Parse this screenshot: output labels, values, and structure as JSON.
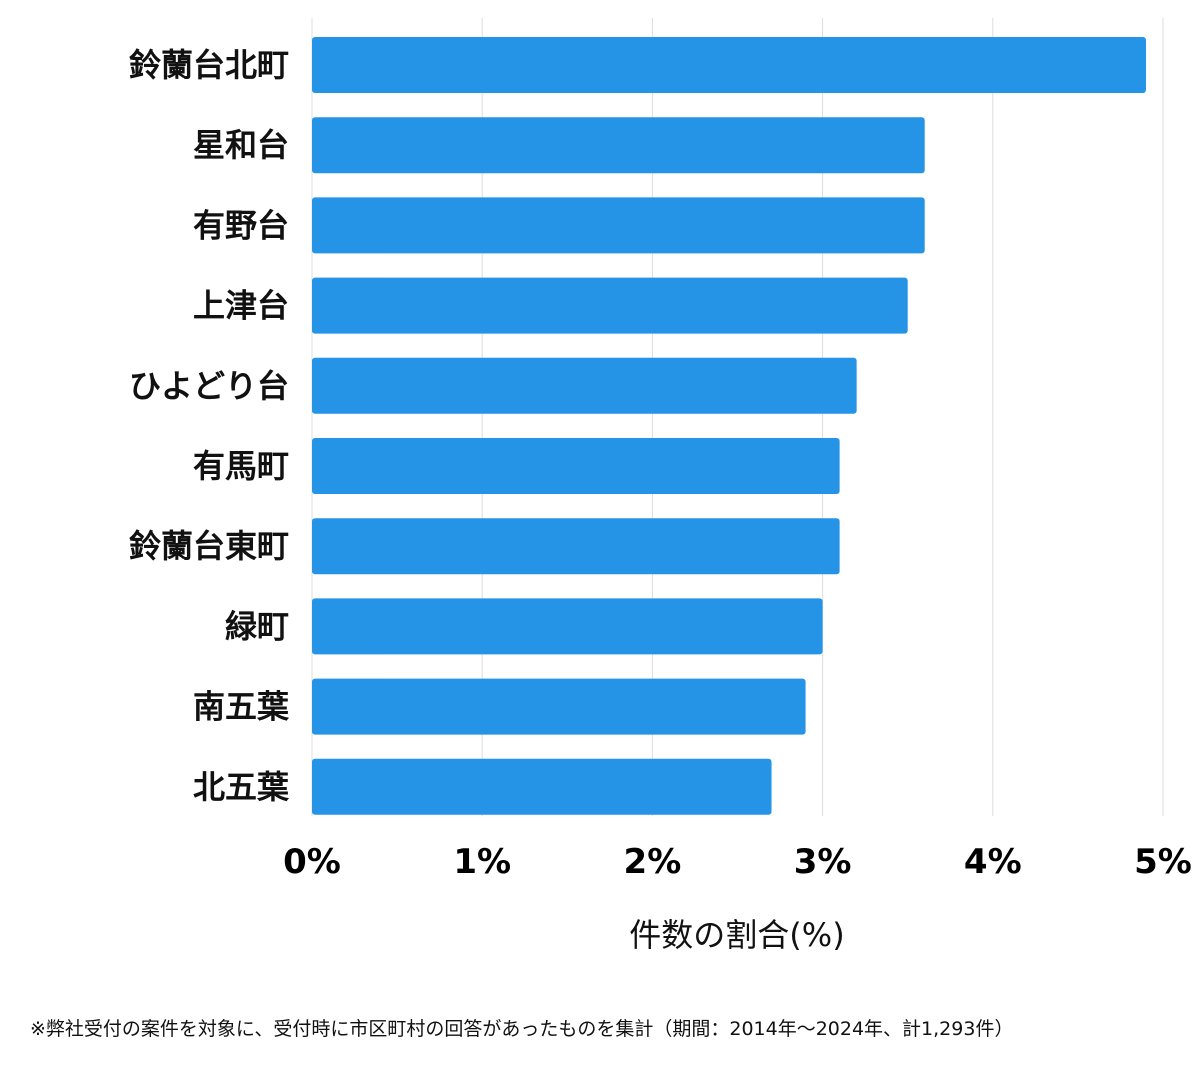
{
  "chart_data": {
    "type": "bar",
    "orientation": "horizontal",
    "categories": [
      "鈴蘭台北町",
      "星和台",
      "有野台",
      "上津台",
      "ひよどり台",
      "有馬町",
      "鈴蘭台東町",
      "緑町",
      "南五葉",
      "北五葉"
    ],
    "values": [
      4.9,
      3.6,
      3.6,
      3.5,
      3.2,
      3.1,
      3.1,
      3.0,
      2.9,
      2.7
    ],
    "xlim": [
      0,
      5
    ],
    "xticks": [
      0,
      1,
      2,
      3,
      4,
      5
    ],
    "xtick_labels": [
      "0%",
      "1%",
      "2%",
      "3%",
      "4%",
      "5%"
    ],
    "xlabel": "件数の割合(%)",
    "ylabel": "",
    "title": "",
    "grid": "vertical",
    "bar_color": "#2694e6",
    "grid_color": "#dddddd"
  },
  "footnote": "※弊社受付の案件を対象に、受付時に市区町村の回答があったものを集計（期間：2014年〜2024年、計1,293件）"
}
